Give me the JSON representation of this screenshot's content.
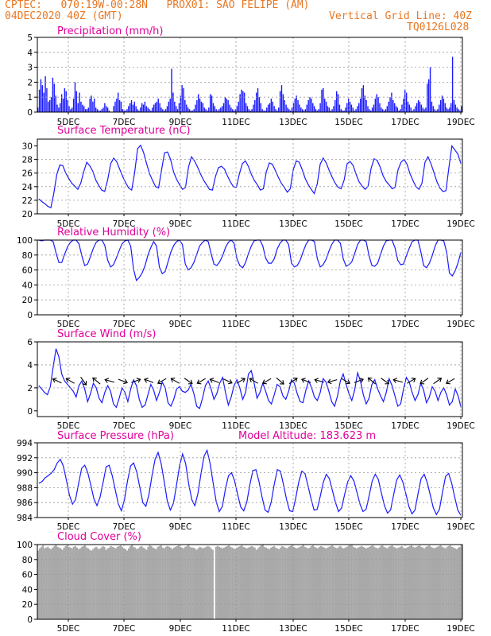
{
  "header": {
    "line1": "CPTEC:   070:19W-00:28N   PROX01: SAO FELIPE (AM)",
    "line2": "04DEC2020 40Z (GMT)",
    "grid_note": "Vertical Grid Line: 40Z",
    "code": "TQ0126L028",
    "color": "#e87722"
  },
  "colors": {
    "title": "#e0009a",
    "series": "#1a1aff",
    "cloud": "#a9a9a9",
    "grid": "#9a9a9a"
  },
  "chart_data": [
    {
      "id": "precip",
      "type": "bar",
      "title": "Precipitation (mm/h)",
      "ylim": [
        0,
        5
      ],
      "yticks": [
        0,
        1,
        2,
        3,
        4,
        5
      ],
      "xticks": [
        "5DEC",
        "7DEC",
        "9DEC",
        "11DEC",
        "13DEC",
        "15DEC",
        "17DEC",
        "19DEC"
      ],
      "grid": true,
      "values": [
        0.3,
        1.5,
        2.2,
        1.8,
        1.3,
        2.4,
        1.6,
        0.7,
        0.8,
        1.0,
        2.3,
        1.9,
        1.1,
        0.5,
        0.3,
        0.6,
        1.2,
        0.9,
        1.6,
        1.4,
        0.8,
        0.4,
        0.2,
        0.3,
        0.9,
        2.0,
        1.4,
        0.6,
        1.3,
        0.7,
        0.5,
        0.4,
        0.2,
        0.2,
        0.3,
        0.9,
        1.1,
        0.7,
        0.9,
        0.3,
        0.2,
        0.1,
        0.1,
        0.2,
        0.3,
        0.6,
        0.4,
        0.3,
        0.1,
        0.0,
        0.0,
        0.4,
        0.7,
        0.9,
        1.3,
        0.8,
        0.7,
        0.2,
        0.1,
        0.1,
        0.2,
        0.4,
        0.6,
        0.8,
        0.5,
        0.7,
        0.4,
        0.2,
        0.1,
        0.3,
        0.6,
        0.5,
        0.7,
        0.4,
        0.3,
        0.2,
        0.1,
        0.3,
        0.5,
        0.6,
        0.7,
        0.9,
        0.6,
        0.3,
        0.2,
        0.1,
        0.2,
        0.4,
        0.7,
        0.9,
        2.9,
        1.3,
        0.7,
        0.4,
        0.2,
        0.6,
        1.1,
        1.8,
        1.6,
        0.8,
        0.5,
        0.3,
        0.2,
        0.1,
        0.1,
        0.2,
        0.5,
        0.8,
        1.2,
        0.9,
        0.7,
        0.6,
        0.3,
        0.2,
        0.1,
        0.3,
        1.2,
        1.1,
        0.6,
        0.4,
        0.2,
        0.1,
        0.2,
        0.3,
        0.4,
        0.6,
        1.0,
        0.9,
        0.8,
        0.5,
        0.3,
        0.2,
        0.1,
        0.2,
        0.4,
        0.7,
        1.2,
        1.5,
        1.4,
        1.3,
        0.6,
        0.4,
        0.2,
        0.1,
        0.2,
        0.5,
        0.8,
        1.3,
        1.6,
        1.0,
        0.6,
        0.2,
        0.1,
        0.1,
        0.3,
        0.5,
        0.6,
        0.9,
        0.7,
        0.4,
        0.2,
        0.1,
        0.3,
        1.4,
        1.8,
        1.2,
        0.8,
        0.5,
        0.3,
        0.2,
        0.1,
        0.3,
        0.6,
        0.9,
        1.1,
        0.8,
        0.5,
        0.3,
        0.2,
        0.1,
        0.2,
        0.5,
        0.8,
        1.0,
        0.9,
        0.6,
        0.4,
        0.2,
        0.1,
        0.2,
        0.6,
        1.5,
        1.6,
        0.9,
        0.7,
        0.4,
        0.3,
        0.1,
        0.2,
        0.4,
        0.8,
        1.4,
        1.2,
        0.5,
        0.2,
        0.1,
        0.1,
        0.3,
        0.6,
        0.9,
        0.7,
        0.5,
        0.3,
        0.1,
        0.2,
        0.4,
        0.6,
        0.9,
        1.6,
        1.8,
        1.1,
        0.8,
        0.4,
        0.2,
        0.1,
        0.3,
        0.5,
        0.9,
        1.2,
        1.0,
        0.6,
        0.3,
        0.2,
        0.1,
        0.2,
        0.4,
        0.7,
        1.0,
        1.3,
        0.8,
        0.6,
        0.4,
        0.3,
        0.1,
        0.2,
        0.5,
        0.9,
        1.5,
        1.3,
        0.7,
        0.5,
        0.3,
        0.1,
        0.2,
        0.4,
        0.6,
        0.8,
        0.7,
        0.5,
        0.3,
        0.2,
        0.3,
        1.9,
        2.2,
        3.0,
        0.7,
        0.4,
        0.2,
        0.1,
        0.2,
        0.5,
        0.8,
        1.1,
        0.9,
        0.6,
        0.3,
        0.2,
        0.3,
        0.6,
        3.7,
        0.8,
        0.5,
        0.3,
        0.2,
        0.1,
        0.4
      ]
    },
    {
      "id": "temp",
      "type": "line",
      "title": "Surface Temperature (nC)",
      "ylim": [
        20,
        31
      ],
      "yticks": [
        20,
        22,
        24,
        26,
        28,
        30
      ],
      "xticks": [
        "5DEC",
        "7DEC",
        "9DEC",
        "11DEC",
        "13DEC",
        "15DEC",
        "17DEC",
        "19DEC"
      ],
      "grid": true,
      "values": [
        22.2,
        21.8,
        21.5,
        21.1,
        20.9,
        23.0,
        25.8,
        27.2,
        27.1,
        26.0,
        25.2,
        24.5,
        24.1,
        23.6,
        24.5,
        26.2,
        27.6,
        27.1,
        26.3,
        25.0,
        24.2,
        23.5,
        23.3,
        25.0,
        27.4,
        28.2,
        27.7,
        26.6,
        25.5,
        24.6,
        23.8,
        23.5,
        26.0,
        29.6,
        30.1,
        29.0,
        27.4,
        25.9,
        24.9,
        24.0,
        23.8,
        26.5,
        29.0,
        29.1,
        28.0,
        26.2,
        25.1,
        24.3,
        23.6,
        23.9,
        26.9,
        28.4,
        27.8,
        26.9,
        25.9,
        25.0,
        24.3,
        23.6,
        23.5,
        25.5,
        26.8,
        27.0,
        26.6,
        25.6,
        24.7,
        24.0,
        23.9,
        25.9,
        27.4,
        27.8,
        27.0,
        25.8,
        24.9,
        24.3,
        23.5,
        23.7,
        26.2,
        27.5,
        27.3,
        26.4,
        25.4,
        24.5,
        23.9,
        23.2,
        23.7,
        26.5,
        27.8,
        27.6,
        26.5,
        25.2,
        24.3,
        23.6,
        23.0,
        24.4,
        27.3,
        28.2,
        27.5,
        26.4,
        25.4,
        24.5,
        23.9,
        23.7,
        25.0,
        27.4,
        27.7,
        27.1,
        25.8,
        24.7,
        24.1,
        23.6,
        24.1,
        26.7,
        28.1,
        27.9,
        26.9,
        25.6,
        24.8,
        24.3,
        23.7,
        23.9,
        26.5,
        27.6,
        28.0,
        27.3,
        25.9,
        24.9,
        24.0,
        23.6,
        24.5,
        27.6,
        28.4,
        27.4,
        26.1,
        24.7,
        23.8,
        23.3,
        23.4,
        26.8,
        30.0,
        29.4,
        28.8,
        27.4
      ]
    },
    {
      "id": "rh",
      "type": "line",
      "title": "Relative Humidity (%)",
      "ylim": [
        0,
        100
      ],
      "yticks": [
        0,
        20,
        40,
        60,
        80,
        100
      ],
      "xticks": [
        "5DEC",
        "7DEC",
        "9DEC",
        "11DEC",
        "13DEC",
        "15DEC",
        "17DEC",
        "19DEC"
      ],
      "grid": true,
      "values": [
        100,
        99,
        100,
        100,
        100,
        98,
        83,
        70,
        70,
        81,
        91,
        97,
        100,
        100,
        95,
        79,
        66,
        68,
        78,
        89,
        97,
        100,
        100,
        93,
        73,
        64,
        67,
        76,
        86,
        95,
        99,
        100,
        92,
        61,
        46,
        50,
        56,
        66,
        80,
        90,
        98,
        92,
        64,
        55,
        58,
        71,
        84,
        93,
        98,
        100,
        94,
        68,
        60,
        63,
        70,
        81,
        92,
        97,
        100,
        98,
        82,
        68,
        66,
        71,
        79,
        90,
        97,
        100,
        96,
        75,
        66,
        63,
        70,
        82,
        92,
        99,
        100,
        100,
        92,
        76,
        69,
        69,
        75,
        88,
        96,
        100,
        100,
        94,
        69,
        64,
        66,
        73,
        84,
        94,
        100,
        100,
        98,
        75,
        64,
        67,
        74,
        85,
        94,
        100,
        100,
        96,
        75,
        65,
        67,
        71,
        82,
        94,
        100,
        100,
        98,
        79,
        66,
        65,
        69,
        81,
        92,
        99,
        100,
        100,
        90,
        73,
        67,
        68,
        79,
        89,
        98,
        100,
        100,
        85,
        66,
        63,
        69,
        79,
        92,
        100,
        100,
        99,
        84,
        56,
        52,
        59,
        70,
        84
      ]
    },
    {
      "id": "wind",
      "type": "line",
      "title": "Surface Wind (m/s)",
      "ylim": [
        -0.5,
        6
      ],
      "yticks": [
        0,
        2,
        4,
        6
      ],
      "xticks": [
        "5DEC",
        "7DEC",
        "9DEC",
        "11DEC",
        "13DEC",
        "15DEC",
        "17DEC",
        "19DEC"
      ],
      "grid": true,
      "values": [
        2.2,
        1.9,
        1.6,
        1.4,
        2.1,
        3.8,
        5.4,
        4.7,
        3.2,
        2.6,
        2.3,
        2.0,
        1.7,
        1.2,
        2.2,
        2.6,
        1.9,
        0.8,
        1.5,
        2.4,
        2.0,
        1.1,
        0.7,
        1.6,
        2.2,
        1.7,
        0.6,
        0.3,
        1.1,
        2.0,
        1.6,
        0.8,
        1.9,
        2.7,
        2.2,
        1.0,
        0.3,
        0.5,
        1.4,
        2.3,
        1.8,
        0.9,
        1.6,
        2.5,
        2.0,
        0.7,
        0.4,
        1.0,
        1.9,
        2.1,
        1.7,
        1.6,
        1.8,
        2.3,
        1.5,
        0.4,
        0.2,
        1.1,
        2.2,
        2.6,
        1.9,
        1.0,
        1.5,
        2.4,
        2.9,
        1.6,
        0.5,
        1.2,
        2.2,
        2.7,
        2.0,
        1.0,
        1.6,
        3.2,
        3.5,
        2.4,
        1.1,
        1.6,
        2.4,
        1.7,
        0.9,
        0.6,
        1.4,
        2.3,
        2.1,
        1.3,
        1.0,
        1.7,
        2.7,
        2.4,
        1.5,
        0.8,
        0.7,
        1.8,
        2.6,
        2.0,
        1.2,
        0.9,
        1.6,
        2.8,
        2.5,
        1.7,
        0.8,
        0.4,
        1.3,
        2.6,
        3.2,
        2.3,
        1.5,
        0.9,
        1.8,
        3.3,
        2.6,
        1.4,
        0.6,
        1.1,
        2.3,
        2.7,
        1.9,
        1.3,
        0.8,
        1.6,
        2.8,
        2.2,
        1.3,
        0.4,
        0.6,
        1.9,
        2.9,
        2.5,
        1.6,
        0.9,
        1.4,
        2.4,
        1.8,
        0.7,
        1.2,
        2.1,
        1.7,
        0.9,
        1.6,
        2.0,
        1.4,
        0.5,
        0.8,
        1.9,
        1.3,
        0.3
      ],
      "barb_rotations": [
        205,
        210,
        55,
        220,
        195,
        20,
        340,
        200,
        150,
        210,
        35,
        150,
        200,
        25,
        330,
        210,
        150,
        40,
        325,
        200,
        195,
        165,
        30,
        340,
        220,
        35,
        195,
        330,
        145,
        325,
        150
      ]
    },
    {
      "id": "pres",
      "type": "line",
      "title": "Surface Pressure (hPa)",
      "annotation": "Model Altitude: 183.623 m",
      "ylim": [
        984,
        994
      ],
      "yticks": [
        984,
        986,
        988,
        990,
        992,
        994
      ],
      "xticks": [
        "5DEC",
        "7DEC",
        "9DEC",
        "11DEC",
        "13DEC",
        "15DEC",
        "17DEC",
        "19DEC"
      ],
      "grid": true,
      "values": [
        988.6,
        988.8,
        989.3,
        989.6,
        989.9,
        990.4,
        991.3,
        991.8,
        990.9,
        989.0,
        987.0,
        985.8,
        986.4,
        988.6,
        990.6,
        991.0,
        990.0,
        988.3,
        986.5,
        985.6,
        986.7,
        988.7,
        990.8,
        991.0,
        989.6,
        987.7,
        985.8,
        984.9,
        986.4,
        988.9,
        990.9,
        991.3,
        990.1,
        988.1,
        986.0,
        985.5,
        987.1,
        989.6,
        991.8,
        992.7,
        991.2,
        988.8,
        986.2,
        985.0,
        985.9,
        988.3,
        990.9,
        992.5,
        991.2,
        988.5,
        986.4,
        985.6,
        987.2,
        989.8,
        992.2,
        993.0,
        991.2,
        988.6,
        986.1,
        984.8,
        985.5,
        987.8,
        989.6,
        990.0,
        988.9,
        987.1,
        985.4,
        984.9,
        986.1,
        988.4,
        990.3,
        990.4,
        988.8,
        986.7,
        985.0,
        984.7,
        986.1,
        988.5,
        990.4,
        990.2,
        988.4,
        986.4,
        984.9,
        984.8,
        986.6,
        988.8,
        990.2,
        989.9,
        988.3,
        986.5,
        985.0,
        985.1,
        986.8,
        988.7,
        989.8,
        989.2,
        987.6,
        986.0,
        984.8,
        985.3,
        987.1,
        988.8,
        989.6,
        988.9,
        987.4,
        985.8,
        984.8,
        985.1,
        986.9,
        988.9,
        989.8,
        989.1,
        987.3,
        985.6,
        984.6,
        985.0,
        987.0,
        989.0,
        989.7,
        988.8,
        987.2,
        985.5,
        984.5,
        985.0,
        987.2,
        989.2,
        989.8,
        988.7,
        987.0,
        985.3,
        984.4,
        985.1,
        987.4,
        989.5,
        989.9,
        988.6,
        986.7,
        985.0,
        984.3
      ]
    },
    {
      "id": "cloud",
      "type": "bar",
      "title": "Cloud Cover (%)",
      "ylim": [
        0,
        100
      ],
      "yticks": [
        0,
        20,
        40,
        60,
        80,
        100
      ],
      "xticks": [
        "5DEC",
        "7DEC",
        "9DEC",
        "11DEC",
        "13DEC",
        "15DEC",
        "17DEC",
        "19DEC"
      ],
      "grid": true,
      "values": [
        92,
        95,
        97,
        99,
        95,
        96,
        97,
        95,
        94,
        96,
        98,
        100,
        97,
        96,
        95,
        93,
        96,
        98,
        99,
        97,
        96,
        95,
        97,
        98,
        96,
        94,
        95,
        97,
        98,
        99,
        96,
        95,
        93,
        92,
        94,
        96,
        97,
        95,
        94,
        96,
        98,
        97,
        93,
        95,
        96,
        98,
        97,
        96,
        95,
        97,
        98,
        99,
        97,
        95,
        94,
        92,
        95,
        98,
        100,
        97,
        96,
        94,
        95,
        97,
        98,
        96,
        95,
        93,
        97,
        99,
        98,
        96,
        95,
        94,
        97,
        98,
        99,
        96,
        95,
        97,
        98,
        97,
        96,
        94,
        96,
        97,
        98,
        99,
        97,
        96,
        95,
        97,
        98,
        100,
        97,
        96,
        96,
        95,
        93,
        95,
        97,
        96,
        95,
        96,
        97,
        98,
        97,
        95,
        93,
        0,
        97,
        98,
        97,
        96,
        95,
        96,
        97,
        98,
        99,
        97,
        96,
        95,
        94,
        96,
        97,
        98,
        99,
        97,
        96,
        95,
        96,
        97,
        98,
        97,
        96,
        93,
        95,
        97,
        99,
        100,
        97,
        96,
        95,
        94,
        96,
        97,
        98,
        96,
        95,
        94,
        96,
        98,
        97,
        96,
        95,
        97,
        98,
        99,
        97,
        96,
        95,
        96,
        97,
        98,
        100,
        97,
        96,
        95,
        96,
        98,
        99,
        97,
        96,
        95,
        97,
        98,
        97,
        96,
        95,
        96,
        97,
        98,
        99,
        97,
        96,
        95,
        97,
        98,
        96,
        95,
        96,
        97,
        98,
        99,
        100,
        97,
        96,
        95,
        96,
        97,
        98,
        97,
        96,
        95,
        96,
        97,
        98,
        99,
        97,
        96,
        95,
        96,
        98,
        99,
        97,
        96,
        95,
        97,
        98,
        99,
        97,
        96,
        95,
        96,
        97,
        98,
        96,
        95,
        96,
        97,
        98,
        99,
        97,
        96,
        97,
        98,
        99,
        97,
        96,
        95,
        97,
        98,
        99,
        97,
        96,
        95,
        96,
        97,
        98,
        99,
        97,
        96,
        95,
        97,
        98,
        99,
        97,
        96,
        95,
        94,
        96,
        97,
        99
      ]
    }
  ]
}
